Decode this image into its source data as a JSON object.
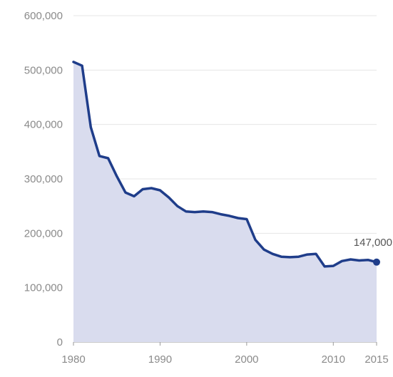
{
  "chart_data": {
    "type": "area",
    "title": "",
    "xlabel": "",
    "ylabel": "",
    "xlim": [
      1980,
      2015
    ],
    "ylim": [
      0,
      600000
    ],
    "y_ticks": [
      {
        "value": 0,
        "label": "0"
      },
      {
        "value": 100000,
        "label": "100,000"
      },
      {
        "value": 200000,
        "label": "200,000"
      },
      {
        "value": 300000,
        "label": "300,000"
      },
      {
        "value": 400000,
        "label": "400,000"
      },
      {
        "value": 500000,
        "label": "500,000"
      },
      {
        "value": 600000,
        "label": "600,000"
      }
    ],
    "x_ticks": [
      {
        "value": 1980,
        "label": "1980"
      },
      {
        "value": 1990,
        "label": "1990"
      },
      {
        "value": 2000,
        "label": "2000"
      },
      {
        "value": 2010,
        "label": "2010"
      },
      {
        "value": 2015,
        "label": "2015"
      }
    ],
    "grid": true,
    "series": [
      {
        "x": [
          1980,
          1981,
          1982,
          1983,
          1984,
          1985,
          1986,
          1987,
          1988,
          1989,
          1990,
          1991,
          1992,
          1993,
          1994,
          1995,
          1996,
          1997,
          1998,
          1999,
          2000,
          2001,
          2002,
          2003,
          2004,
          2005,
          2006,
          2007,
          2008,
          2009,
          2010,
          2011,
          2012,
          2013,
          2014,
          2015
        ],
        "y": [
          515000,
          508000,
          395000,
          342000,
          338000,
          305000,
          275000,
          268000,
          281000,
          283000,
          279000,
          266000,
          250000,
          240000,
          239000,
          240000,
          239000,
          235000,
          232000,
          228000,
          226000,
          188000,
          170000,
          162000,
          157000,
          156000,
          157000,
          161000,
          162000,
          139000,
          140000,
          149000,
          152000,
          150000,
          151000,
          147000
        ],
        "color": "#1f3d8a",
        "fill": "#d9dcee"
      }
    ],
    "annotations": [
      {
        "x": 2015,
        "y": 147000,
        "text": "147,000"
      }
    ]
  }
}
